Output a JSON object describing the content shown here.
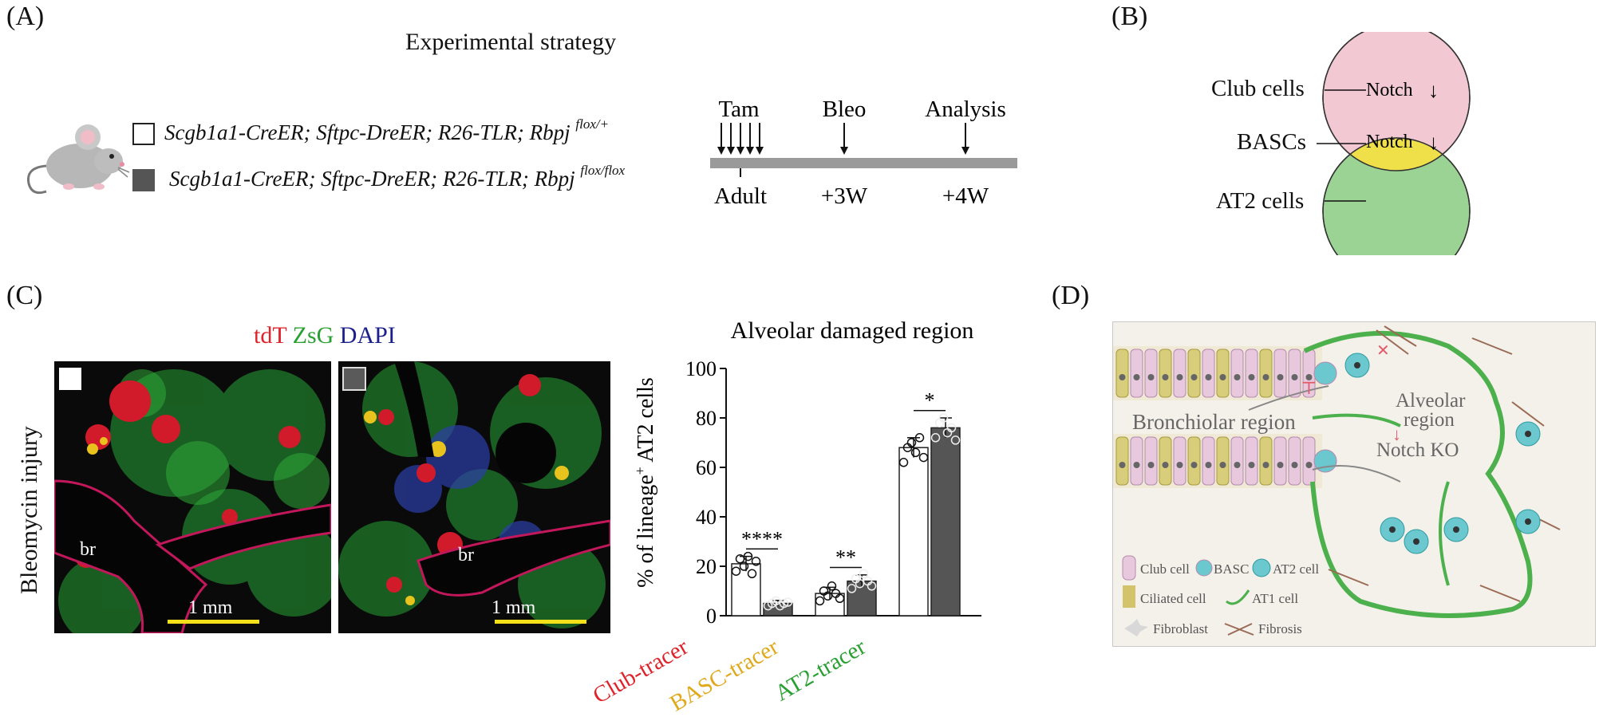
{
  "panels": {
    "a": "(A)",
    "b": "(B)",
    "c": "(C)",
    "d": "(D)"
  },
  "panelA": {
    "title": "Experimental strategy",
    "genotypes": [
      {
        "text": "Scgb1a1-CreER; Sftpc-DreER; R26-TLR; Rbpj",
        "sup": "flox/+",
        "fill": "#ffffff"
      },
      {
        "text": "Scgb1a1-CreER; Sftpc-DreER; R26-TLR; Rbpj",
        "sup": "flox/flox",
        "fill": "#555555"
      }
    ],
    "timeline": {
      "events": [
        "Tam",
        "Bleo",
        "Analysis"
      ],
      "times": [
        "Adult",
        "+3W",
        "+4W"
      ]
    },
    "icon": "mouse-icon"
  },
  "panelB": {
    "labels": [
      "Club cells",
      "BASCs",
      "AT2 cells"
    ],
    "notch": "Notch",
    "arrow": "↓",
    "colors": {
      "club": "#f2c9d3",
      "basc": "#efe04a",
      "at2": "#9bd394"
    }
  },
  "panelC": {
    "stain": [
      {
        "text": "tdT",
        "color": "#e0222a"
      },
      {
        "text": "ZsG",
        "color": "#2aa032"
      },
      {
        "text": "DAPI",
        "color": "#1b1f8c"
      }
    ],
    "rowlabel": "Bleomycin injury",
    "br": "br",
    "scale": "1 mm",
    "icons": [
      "control-square-icon",
      "mutant-square-icon"
    ]
  },
  "chart_data": {
    "type": "bar",
    "title": "Alveolar damaged region",
    "ylabel_pre": "% of lineage",
    "ylabel_sup": "+",
    "ylabel_post": " AT2 cells",
    "ylim": [
      0,
      100
    ],
    "yticks": [
      "0",
      "20",
      "40",
      "60",
      "80",
      "100"
    ],
    "categories": [
      {
        "label": "Club-tracer",
        "color": "#e0222a"
      },
      {
        "label": "BASC-tracer",
        "color": "#e0a91b"
      },
      {
        "label": "AT2-tracer",
        "color": "#2aa032"
      }
    ],
    "series": [
      {
        "name": "Rbpj flox/+",
        "values": [
          21,
          9,
          68
        ],
        "errors": [
          3,
          2.5,
          4
        ],
        "fill": "#ffffff"
      },
      {
        "name": "Rbpj flox/flox",
        "values": [
          5,
          14,
          76
        ],
        "errors": [
          1.2,
          2.5,
          4
        ],
        "fill": "#555555"
      }
    ],
    "points": [
      [
        [
          18,
          23,
          20,
          24,
          17,
          22
        ],
        [
          4,
          5,
          6,
          4,
          5,
          5.5
        ]
      ],
      [
        [
          6,
          10,
          8,
          12,
          9,
          7
        ],
        [
          11,
          15,
          13,
          17,
          14,
          12
        ]
      ],
      [
        [
          62,
          68,
          70,
          66,
          72,
          64
        ],
        [
          72,
          78,
          80,
          74,
          76,
          71
        ]
      ]
    ],
    "significance": [
      "****",
      "**",
      "*"
    ]
  },
  "panelD": {
    "bronchiolar": "Bronchiolar region",
    "alveolar1": "Alveolar",
    "alveolar2": "region",
    "notchko": "Notch KO",
    "legend": [
      "Club cell",
      "BASC",
      "AT2 cell",
      "Ciliated cell",
      "AT1 cell",
      "Fibroblast",
      "Fibrosis"
    ]
  }
}
